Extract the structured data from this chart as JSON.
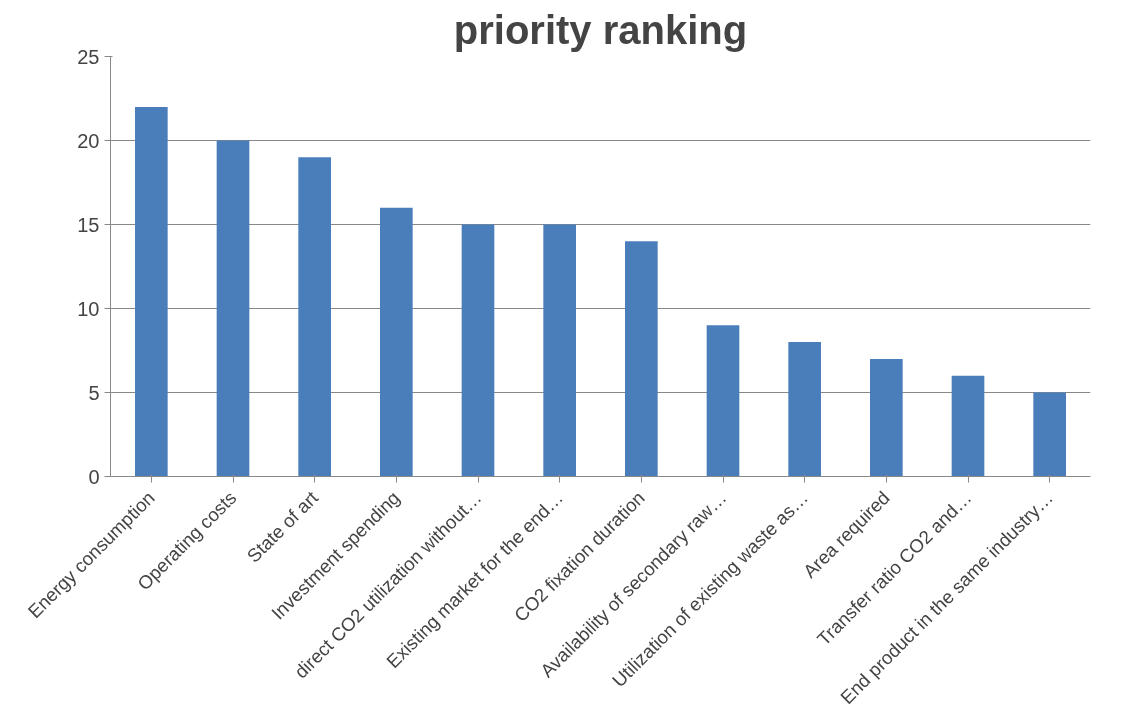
{
  "chart_data": {
    "type": "bar",
    "title": "priority ranking",
    "categories": [
      "Energy consumption",
      "Operating costs",
      "State of art",
      "Investment spending",
      "direct CO2 utilization without…",
      "Existing market for the end…",
      "CO2 fixation duration",
      "Availability of secondary raw…",
      "Utilization of existing waste as…",
      "Area required",
      "Transfer ratio CO2 and…",
      "End product in the same industry…"
    ],
    "values": [
      22,
      20,
      19,
      16,
      15,
      15,
      14,
      9,
      8,
      7,
      6,
      5
    ],
    "color": "#4a7ebb",
    "ylim": [
      0,
      25
    ],
    "yticks": [
      0,
      5,
      10,
      15,
      20,
      25
    ],
    "grid": "y"
  }
}
